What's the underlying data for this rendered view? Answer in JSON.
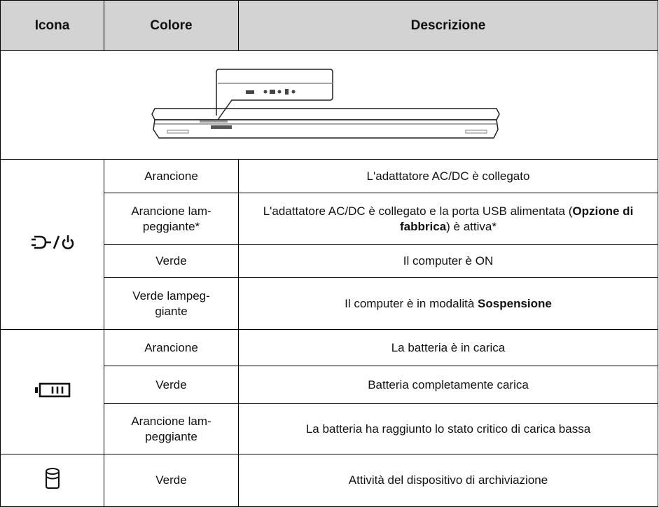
{
  "header": {
    "columns": [
      "Icona",
      "Colore",
      "Descrizione"
    ]
  },
  "groups": [
    {
      "icon": "power",
      "rows": [
        {
          "color": [
            "Arancione"
          ],
          "description": [
            {
              "text": "L'adattatore AC/DC è collegato"
            }
          ]
        },
        {
          "color": [
            "Arancione lam-",
            "peggiante*"
          ],
          "description": [
            {
              "text": "L'adattatore AC/DC è collegato e la porta USB alimentata ("
            },
            {
              "text": "Opzione di fabbrica",
              "bold": true
            },
            {
              "text": ") è attiva*"
            }
          ]
        },
        {
          "color": [
            "Verde"
          ],
          "description": [
            {
              "text": "Il computer è ON"
            }
          ]
        },
        {
          "color": [
            "Verde lampeg-",
            "giante"
          ],
          "description": [
            {
              "text": "Il computer è in modalità "
            },
            {
              "text": "Sospensione",
              "bold": true
            }
          ]
        }
      ]
    },
    {
      "icon": "battery",
      "rows": [
        {
          "color": [
            "Arancione"
          ],
          "description": [
            {
              "text": "La batteria è in carica"
            }
          ]
        },
        {
          "color": [
            "Verde"
          ],
          "description": [
            {
              "text": "Batteria completamente carica"
            }
          ]
        },
        {
          "color": [
            "Arancione lam-",
            "peggiante"
          ],
          "description": [
            {
              "text": "La batteria ha raggiunto lo stato critico di carica bassa"
            }
          ]
        }
      ]
    },
    {
      "icon": "drive",
      "rows": [
        {
          "color": [
            "Verde"
          ],
          "description": [
            {
              "text": "Attività del dispositivo di archiviazione"
            }
          ]
        }
      ]
    }
  ]
}
